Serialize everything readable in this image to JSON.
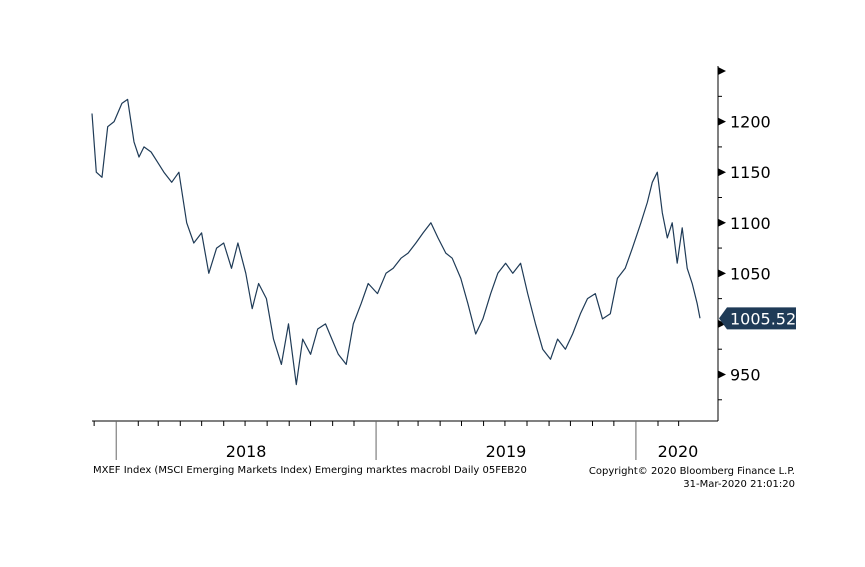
{
  "chart_data": {
    "type": "line",
    "title": "",
    "xlabel": "",
    "ylabel": "",
    "line_color": "#1f3b57",
    "last_value_label": "1005.52",
    "last_value_box_color": "#1f3b57",
    "x_tick_labels": [
      "2018",
      "2019",
      "2020"
    ],
    "y_ticks": [
      950,
      1000,
      1050,
      1100,
      1150,
      1200,
      1250
    ],
    "y_tick_labels": [
      "950",
      "1050",
      "1100",
      "1150",
      "1200"
    ],
    "ylim": [
      905,
      1255
    ],
    "xlim": [
      "2017-11-28",
      "2020-03-31"
    ],
    "grid": false,
    "series": [
      {
        "x": [
          "2017-11-28",
          "2017-12-04",
          "2017-12-12",
          "2017-12-20",
          "2017-12-29",
          "2018-01-09",
          "2018-01-17",
          "2018-01-26",
          "2018-02-02",
          "2018-02-09",
          "2018-02-19",
          "2018-02-28",
          "2018-03-09",
          "2018-03-20",
          "2018-03-30",
          "2018-04-10",
          "2018-04-20",
          "2018-05-01",
          "2018-05-11",
          "2018-05-22",
          "2018-06-01",
          "2018-06-12",
          "2018-06-21",
          "2018-07-02",
          "2018-07-11",
          "2018-07-20",
          "2018-07-31",
          "2018-08-10",
          "2018-08-21",
          "2018-08-31",
          "2018-09-11",
          "2018-09-20",
          "2018-10-01",
          "2018-10-11",
          "2018-10-22",
          "2018-10-31",
          "2018-11-09",
          "2018-11-20",
          "2018-11-30",
          "2018-12-11",
          "2018-12-21",
          "2019-01-03",
          "2019-01-15",
          "2019-01-25",
          "2019-02-05",
          "2019-02-15",
          "2019-02-26",
          "2019-03-08",
          "2019-03-19",
          "2019-03-29",
          "2019-04-09",
          "2019-04-18",
          "2019-04-30",
          "2019-05-10",
          "2019-05-21",
          "2019-05-31",
          "2019-06-11",
          "2019-06-21",
          "2019-07-02",
          "2019-07-12",
          "2019-07-23",
          "2019-08-02",
          "2019-08-13",
          "2019-08-23",
          "2019-09-03",
          "2019-09-13",
          "2019-09-24",
          "2019-10-04",
          "2019-10-15",
          "2019-10-25",
          "2019-11-05",
          "2019-11-15",
          "2019-11-26",
          "2019-12-06",
          "2019-12-17",
          "2019-12-27",
          "2020-01-08",
          "2020-01-17",
          "2020-01-24",
          "2020-01-31",
          "2020-02-07",
          "2020-02-14",
          "2020-02-21",
          "2020-02-28",
          "2020-03-06",
          "2020-03-13",
          "2020-03-20",
          "2020-03-27",
          "2020-03-31"
        ],
        "values": [
          1208,
          1150,
          1145,
          1195,
          1200,
          1218,
          1222,
          1180,
          1165,
          1175,
          1170,
          1160,
          1150,
          1140,
          1150,
          1100,
          1080,
          1090,
          1050,
          1075,
          1080,
          1055,
          1080,
          1050,
          1015,
          1040,
          1025,
          985,
          960,
          1000,
          940,
          985,
          970,
          995,
          1000,
          985,
          970,
          960,
          1000,
          1020,
          1040,
          1030,
          1050,
          1055,
          1065,
          1070,
          1080,
          1090,
          1100,
          1085,
          1070,
          1065,
          1045,
          1020,
          990,
          1005,
          1030,
          1050,
          1060,
          1050,
          1060,
          1030,
          1000,
          975,
          965,
          985,
          975,
          990,
          1010,
          1025,
          1030,
          1005,
          1010,
          1045,
          1055,
          1075,
          1100,
          1120,
          1140,
          1150,
          1110,
          1085,
          1100,
          1060,
          1095,
          1055,
          1040,
          1020,
          1005.52
        ]
      }
    ]
  },
  "footer": {
    "left_text": "MXEF Index (MSCI Emerging Markets Index) Emerging marktes macrobl  Daily 05FEB20",
    "copyright": "Copyright© 2020 Bloomberg Finance L.P.",
    "timestamp": "31-Mar-2020 21:01:20"
  }
}
